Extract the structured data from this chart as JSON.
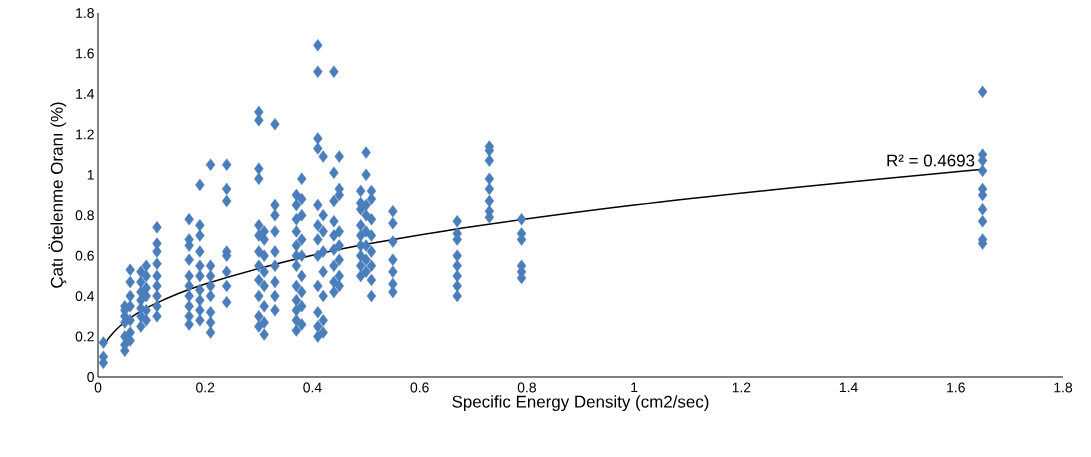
{
  "chart_data": {
    "type": "scatter",
    "xlabel": "Specific Energy Density (cm2/sec)",
    "ylabel": "Çatı Ötelenme Oranı (%)",
    "xlim": [
      0,
      1.8
    ],
    "ylim": [
      0,
      1.8
    ],
    "xticks": [
      0,
      0.2,
      0.4,
      0.6,
      0.8,
      1,
      1.2,
      1.4,
      1.6,
      1.8
    ],
    "yticks": [
      0,
      0.2,
      0.4,
      0.6,
      0.8,
      1,
      1.2,
      1.4,
      1.6,
      1.8
    ],
    "marker": "diamond",
    "grid": false,
    "annotations": [
      {
        "text": "R² = 0.4693",
        "x": 1.65,
        "y": 1.03
      }
    ],
    "series": [
      {
        "color": "#4a7ebb",
        "x": [
          0.01,
          0.01,
          0.01,
          0.05,
          0.05,
          0.05,
          0.05,
          0.05,
          0.05,
          0.05,
          0.06,
          0.06,
          0.06,
          0.06,
          0.06,
          0.06,
          0.06,
          0.08,
          0.08,
          0.08,
          0.08,
          0.08,
          0.08,
          0.08,
          0.09,
          0.09,
          0.09,
          0.09,
          0.09,
          0.09,
          0.11,
          0.11,
          0.11,
          0.11,
          0.11,
          0.11,
          0.11,
          0.11,
          0.11,
          0.17,
          0.17,
          0.17,
          0.17,
          0.17,
          0.17,
          0.17,
          0.17,
          0.17,
          0.17,
          0.19,
          0.19,
          0.19,
          0.19,
          0.19,
          0.19,
          0.19,
          0.19,
          0.19,
          0.19,
          0.21,
          0.21,
          0.21,
          0.21,
          0.21,
          0.21,
          0.21,
          0.21,
          0.24,
          0.24,
          0.24,
          0.24,
          0.24,
          0.24,
          0.24,
          0.24,
          0.3,
          0.3,
          0.3,
          0.3,
          0.3,
          0.3,
          0.3,
          0.3,
          0.3,
          0.3,
          0.3,
          0.3,
          0.31,
          0.31,
          0.31,
          0.31,
          0.31,
          0.31,
          0.31,
          0.31,
          0.33,
          0.33,
          0.33,
          0.33,
          0.33,
          0.33,
          0.33,
          0.33,
          0.33,
          0.37,
          0.37,
          0.37,
          0.37,
          0.37,
          0.37,
          0.37,
          0.37,
          0.37,
          0.37,
          0.37,
          0.37,
          0.38,
          0.38,
          0.38,
          0.38,
          0.38,
          0.38,
          0.38,
          0.38,
          0.38,
          0.41,
          0.41,
          0.41,
          0.41,
          0.41,
          0.41,
          0.41,
          0.41,
          0.41,
          0.41,
          0.41,
          0.41,
          0.42,
          0.42,
          0.42,
          0.42,
          0.42,
          0.42,
          0.42,
          0.42,
          0.44,
          0.44,
          0.44,
          0.44,
          0.44,
          0.44,
          0.44,
          0.44,
          0.44,
          0.45,
          0.45,
          0.45,
          0.45,
          0.45,
          0.45,
          0.45,
          0.45,
          0.49,
          0.49,
          0.49,
          0.49,
          0.49,
          0.49,
          0.49,
          0.49,
          0.49,
          0.5,
          0.5,
          0.5,
          0.5,
          0.5,
          0.5,
          0.5,
          0.5,
          0.51,
          0.51,
          0.51,
          0.51,
          0.51,
          0.51,
          0.51,
          0.51,
          0.55,
          0.55,
          0.55,
          0.55,
          0.55,
          0.55,
          0.55,
          0.67,
          0.67,
          0.67,
          0.67,
          0.67,
          0.67,
          0.67,
          0.67,
          0.73,
          0.73,
          0.73,
          0.73,
          0.73,
          0.73,
          0.73,
          0.73,
          0.79,
          0.79,
          0.79,
          0.79,
          0.79,
          0.79,
          1.65,
          1.65,
          1.65,
          1.65,
          1.65,
          1.65,
          1.65,
          1.65,
          1.65,
          1.65
        ],
        "values": [
          0.07,
          0.1,
          0.17,
          0.13,
          0.16,
          0.2,
          0.27,
          0.3,
          0.33,
          0.35,
          0.18,
          0.22,
          0.28,
          0.35,
          0.4,
          0.47,
          0.53,
          0.25,
          0.3,
          0.34,
          0.38,
          0.42,
          0.47,
          0.52,
          0.28,
          0.33,
          0.4,
          0.44,
          0.5,
          0.55,
          0.3,
          0.35,
          0.4,
          0.45,
          0.5,
          0.56,
          0.62,
          0.66,
          0.74,
          0.26,
          0.3,
          0.35,
          0.4,
          0.45,
          0.5,
          0.58,
          0.65,
          0.68,
          0.78,
          0.28,
          0.33,
          0.38,
          0.43,
          0.5,
          0.55,
          0.62,
          0.7,
          0.75,
          0.95,
          0.22,
          0.27,
          0.32,
          0.4,
          0.45,
          0.5,
          0.55,
          1.05,
          0.37,
          0.45,
          0.52,
          0.6,
          0.62,
          0.87,
          0.93,
          1.05,
          0.25,
          0.3,
          0.4,
          0.48,
          0.55,
          0.62,
          0.7,
          0.75,
          0.98,
          1.03,
          1.27,
          1.31,
          0.21,
          0.27,
          0.35,
          0.45,
          0.52,
          0.6,
          0.68,
          0.72,
          0.33,
          0.4,
          0.47,
          0.55,
          0.62,
          0.72,
          0.8,
          0.85,
          1.25,
          0.23,
          0.28,
          0.33,
          0.38,
          0.45,
          0.55,
          0.6,
          0.65,
          0.72,
          0.78,
          0.85,
          0.9,
          0.26,
          0.35,
          0.42,
          0.5,
          0.6,
          0.68,
          0.8,
          0.88,
          0.98,
          0.2,
          0.25,
          0.32,
          0.45,
          0.6,
          0.68,
          0.75,
          0.85,
          1.13,
          1.18,
          1.51,
          1.64,
          0.22,
          0.28,
          0.4,
          0.52,
          0.62,
          0.72,
          0.8,
          1.09,
          0.42,
          0.47,
          0.55,
          0.63,
          0.7,
          0.77,
          0.87,
          1.01,
          1.51,
          0.45,
          0.5,
          0.58,
          0.65,
          0.72,
          0.9,
          0.93,
          1.09,
          0.5,
          0.55,
          0.6,
          0.65,
          0.7,
          0.75,
          0.83,
          0.86,
          0.92,
          0.52,
          0.58,
          0.65,
          0.72,
          0.8,
          0.85,
          1.0,
          1.11,
          0.4,
          0.48,
          0.55,
          0.62,
          0.7,
          0.78,
          0.88,
          0.92,
          0.42,
          0.46,
          0.52,
          0.58,
          0.67,
          0.76,
          0.82,
          0.4,
          0.45,
          0.5,
          0.55,
          0.6,
          0.68,
          0.71,
          0.77,
          0.79,
          0.82,
          0.87,
          0.93,
          0.98,
          1.07,
          1.12,
          1.14,
          0.49,
          0.52,
          0.55,
          0.68,
          0.71,
          0.78,
          0.66,
          0.68,
          0.77,
          0.83,
          0.9,
          0.93,
          1.02,
          1.07,
          1.1,
          1.41
        ]
      },
      {
        "type": "line",
        "color": "#000000",
        "marker": "none",
        "x": [
          0.01,
          0.02,
          0.04,
          0.07,
          0.1,
          0.15,
          0.2,
          0.3,
          0.4,
          0.5,
          0.7,
          1.0,
          1.3,
          1.65
        ],
        "values": [
          0.148,
          0.193,
          0.25,
          0.31,
          0.354,
          0.413,
          0.46,
          0.537,
          0.602,
          0.656,
          0.744,
          0.85,
          0.937,
          1.027
        ]
      }
    ]
  }
}
